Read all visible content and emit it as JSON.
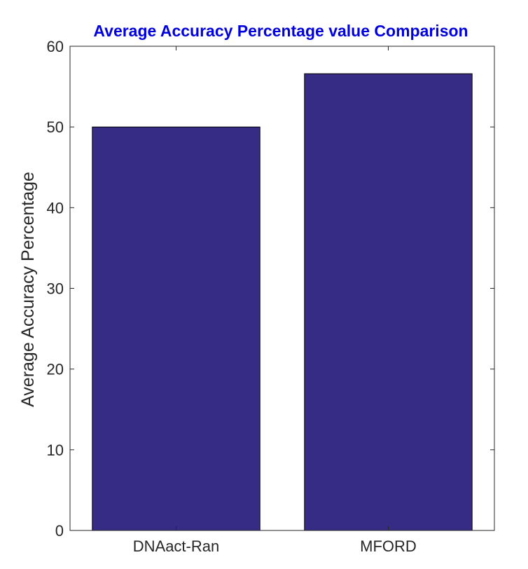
{
  "chart_data": {
    "type": "bar",
    "title": "Average Accuracy Percentage value Comparison",
    "xlabel": "",
    "ylabel": "Average Accuracy Percentage",
    "categories": [
      "DNAact-Ran",
      "MFORD"
    ],
    "values": [
      50,
      56.6
    ],
    "ylim": [
      0,
      60
    ],
    "yticks": [
      0,
      10,
      20,
      30,
      40,
      50,
      60
    ],
    "grid": false,
    "legend": "none",
    "bar_color": "#362c85",
    "title_color": "#0000e0"
  }
}
